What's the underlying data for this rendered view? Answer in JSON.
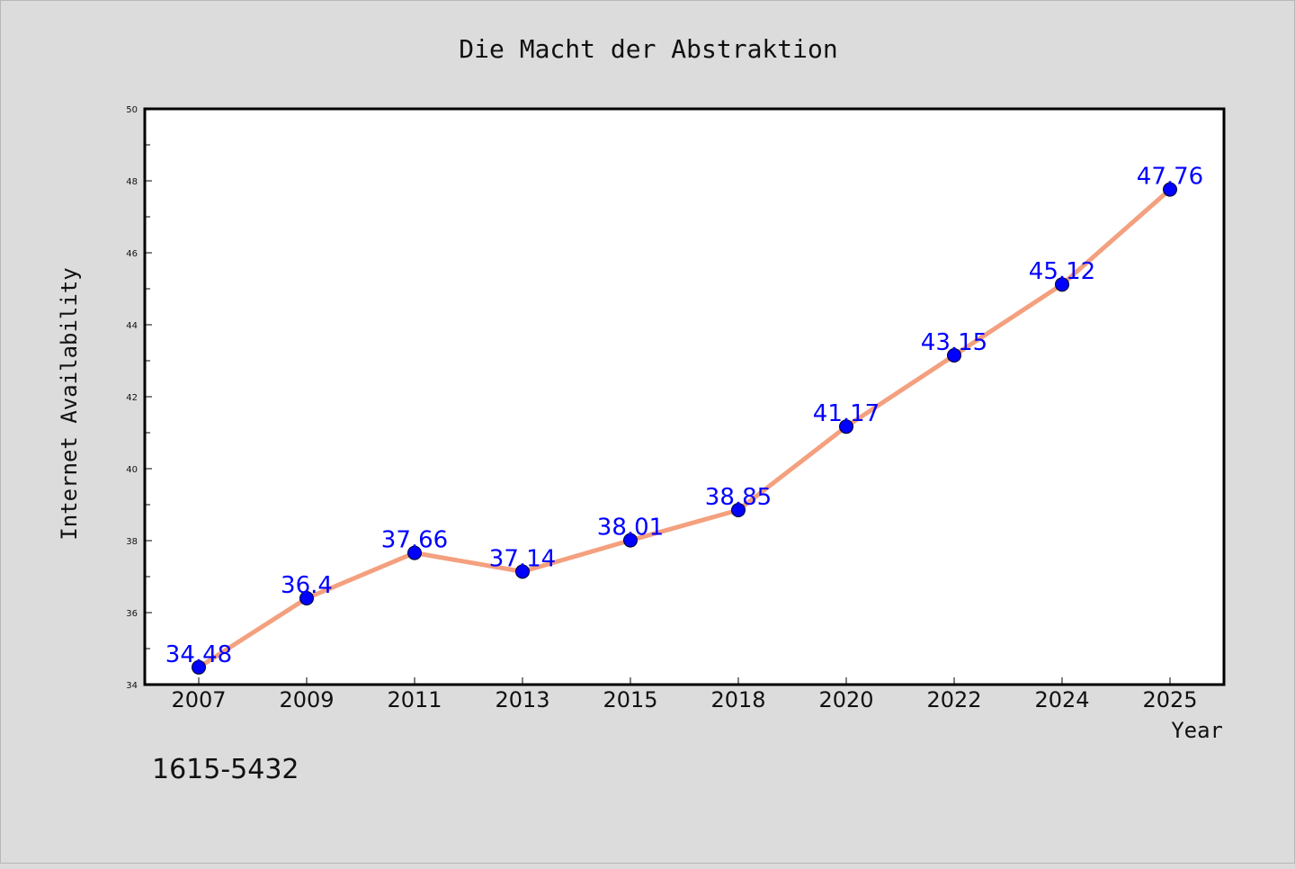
{
  "chart_data": {
    "type": "line",
    "title": "Die Macht der Abstraktion",
    "xlabel": "Year",
    "ylabel": "Internet Availability",
    "categories": [
      "2007",
      "2009",
      "2011",
      "2013",
      "2015",
      "2018",
      "2020",
      "2022",
      "2024",
      "2025"
    ],
    "series": [
      {
        "values": [
          34.48,
          36.4,
          37.66,
          37.14,
          38.01,
          38.85,
          41.17,
          43.15,
          45.12,
          47.76
        ],
        "data_labels": [
          "34.48",
          "36.4",
          "37.66",
          "37.14",
          "38.01",
          "38.85",
          "41.17",
          "43.15",
          "45.12",
          "47.76"
        ],
        "line_color": "#f4a07e",
        "marker_color": "#0000ff"
      }
    ],
    "ylim": [
      34,
      50
    ],
    "yticks": [
      "34",
      "36",
      "38",
      "40",
      "42",
      "44",
      "46",
      "48",
      "50"
    ],
    "grid": false,
    "annotation": "1615-5432"
  },
  "colors": {
    "background": "#dcdcdc",
    "plot_area": "#ffffff",
    "line": "#f4a07e",
    "marker": "#0000ff",
    "data_label": "#0000ff"
  }
}
